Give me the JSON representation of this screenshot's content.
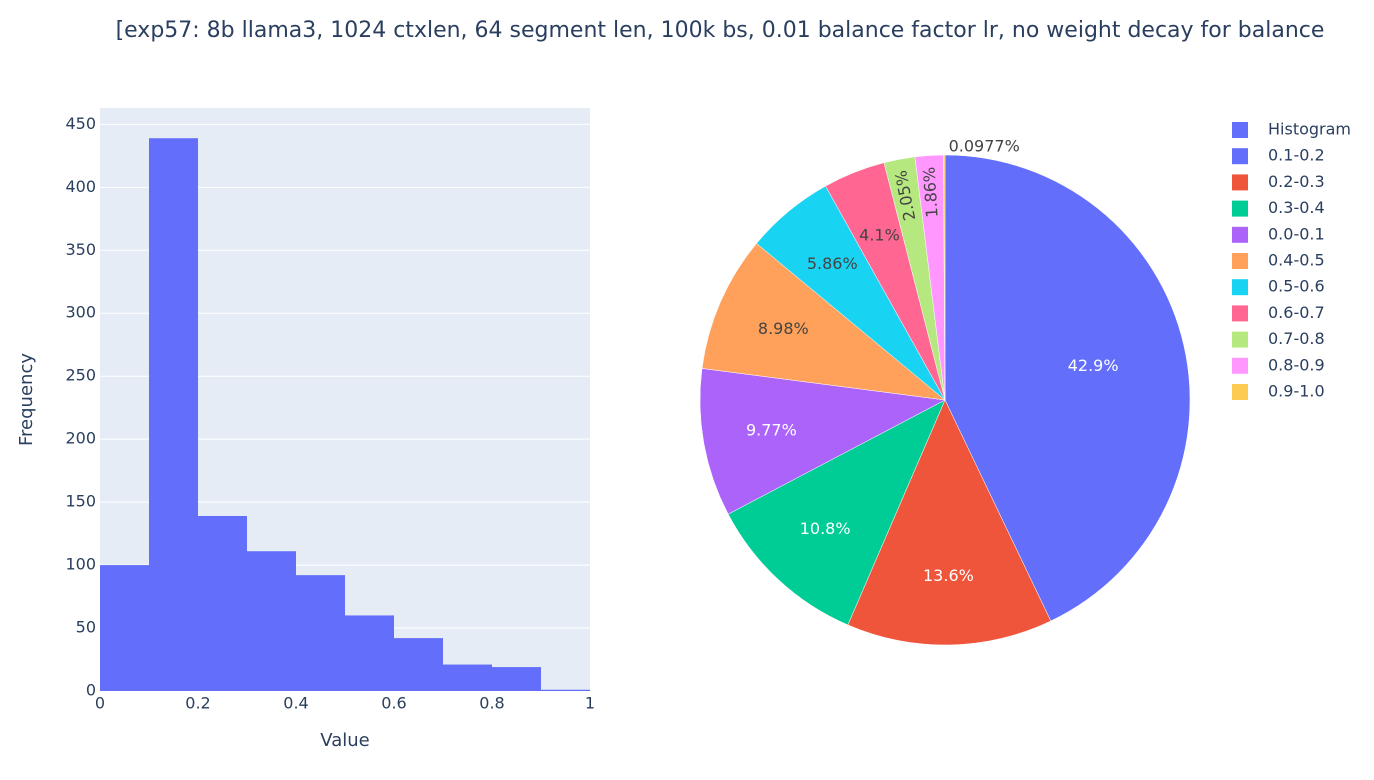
{
  "title": "[exp57: 8b llama3, 1024 ctxlen, 64 segment len, 100k bs, 0.01 balance factor lr, no weight decay for balance",
  "chart_data": [
    {
      "type": "histogram",
      "name": "Histogram",
      "color": "#636efa",
      "bins": [
        0,
        0.1,
        0.2,
        0.3,
        0.4,
        0.5,
        0.6,
        0.7,
        0.8,
        0.9,
        1.0
      ],
      "values": [
        100,
        439,
        139,
        111,
        92,
        60,
        42,
        21,
        19,
        1
      ],
      "xlabel": "Value",
      "ylabel": "Frequency",
      "xlim": [
        0,
        1
      ],
      "xticks": [
        0,
        0.2,
        0.4,
        0.6,
        0.8,
        1
      ],
      "ylim": [
        0,
        463
      ],
      "yticks": [
        0,
        50,
        100,
        150,
        200,
        250,
        300,
        350,
        400,
        450
      ],
      "grid": true
    },
    {
      "type": "pie",
      "categories": [
        "0.1-0.2",
        "0.2-0.3",
        "0.3-0.4",
        "0.0-0.1",
        "0.4-0.5",
        "0.5-0.6",
        "0.6-0.7",
        "0.7-0.8",
        "0.8-0.9",
        "0.9-1.0"
      ],
      "values": [
        42.9,
        13.6,
        10.8,
        9.77,
        8.98,
        5.86,
        4.1,
        2.05,
        1.86,
        0.0977
      ],
      "value_labels": [
        "42.9%",
        "13.6%",
        "10.8%",
        "9.77%",
        "8.98%",
        "5.86%",
        "4.1%",
        "2.05%",
        "1.86%",
        "0.0977%"
      ],
      "colors": [
        "#636efa",
        "#EF553B",
        "#00cc96",
        "#ab63fa",
        "#FFA15A",
        "#19d3f3",
        "#FF6692",
        "#B6E880",
        "#FF97FF",
        "#FECB52"
      ]
    }
  ]
}
